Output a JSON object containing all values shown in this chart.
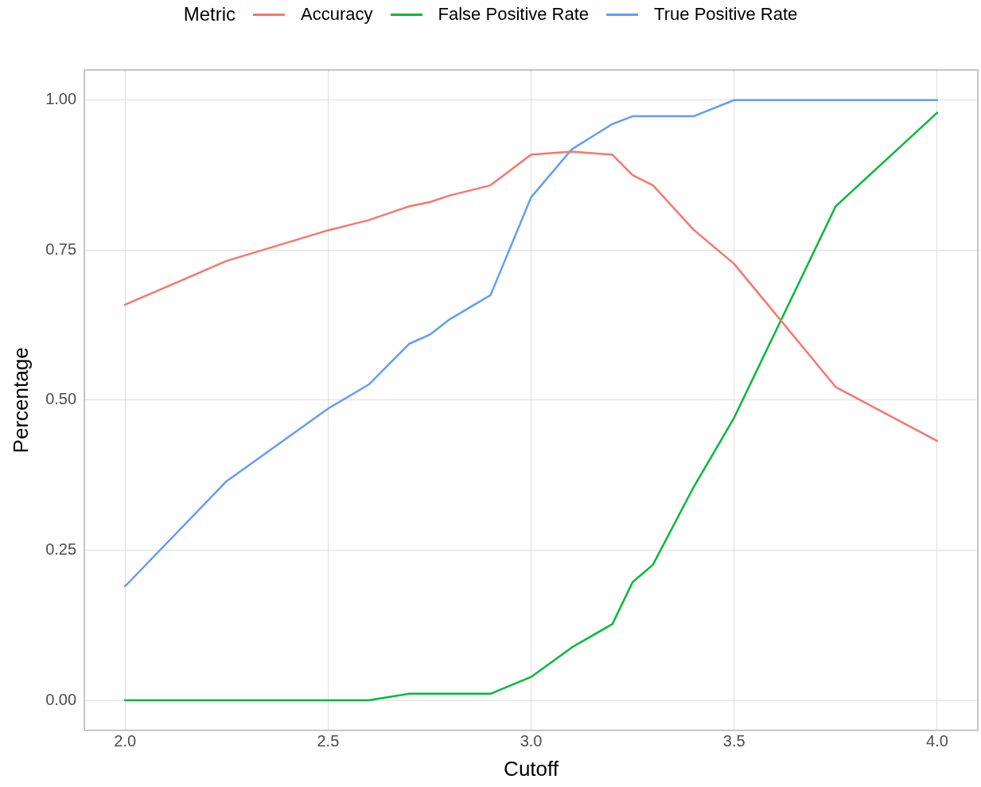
{
  "chart_data": {
    "type": "line",
    "xlabel": "Cutoff",
    "ylabel": "Percentage",
    "legend_title": "Metric",
    "legend": "top",
    "grid": true,
    "marker": "none",
    "line_style": "solid",
    "x": [
      2.0,
      2.25,
      2.5,
      2.6,
      2.7,
      2.75,
      2.8,
      2.9,
      3.0,
      3.1,
      3.2,
      3.25,
      3.3,
      3.4,
      3.5,
      3.75,
      4.0
    ],
    "series": [
      {
        "name": "Accuracy",
        "color": "#f8766d",
        "values": [
          0.659,
          0.732,
          0.783,
          0.8,
          0.823,
          0.83,
          0.841,
          0.858,
          0.909,
          0.914,
          0.909,
          0.875,
          0.858,
          0.784,
          0.727,
          0.522,
          0.432
        ]
      },
      {
        "name": "False Positive Rate",
        "color": "#00ba38",
        "values": [
          0,
          0,
          0,
          0,
          0.011,
          0.011,
          0.011,
          0.011,
          0.039,
          0.088,
          0.127,
          0.197,
          0.226,
          0.355,
          0.471,
          0.823,
          0.979
        ]
      },
      {
        "name": "True Positive Rate",
        "color": "#619cff",
        "values": [
          0.19,
          0.365,
          0.486,
          0.526,
          0.594,
          0.609,
          0.635,
          0.675,
          0.838,
          0.918,
          0.96,
          0.973,
          0.973,
          0.973,
          1,
          1,
          1
        ]
      }
    ],
    "xlim": [
      1.9,
      4.1
    ],
    "xticks": [
      {
        "value": 2,
        "label": "2.0"
      },
      2.5,
      {
        "value": 3,
        "label": "3.0"
      },
      3.5,
      {
        "value": 4,
        "label": "4.0"
      }
    ],
    "ylim": [
      -0.05,
      1.05
    ],
    "yticks": [
      {
        "value": 0,
        "label": "0.00"
      },
      0.25,
      {
        "value": 0.5,
        "label": "0.50"
      },
      0.75,
      {
        "value": 1,
        "label": "1.00"
      }
    ]
  }
}
